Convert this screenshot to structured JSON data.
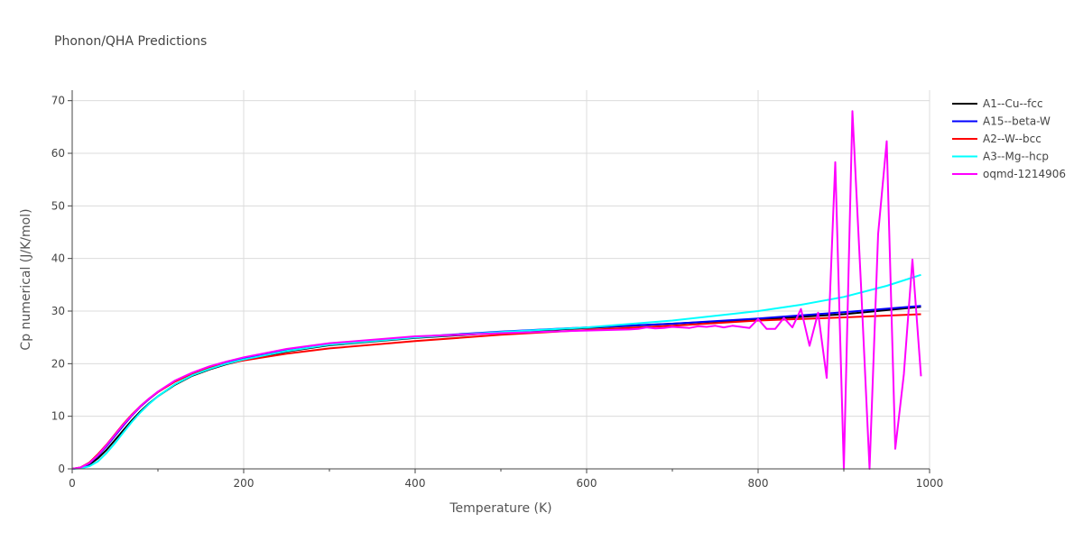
{
  "chart_data": {
    "type": "line",
    "title": "Phonon/QHA Predictions",
    "xlabel": "Temperature (K)",
    "ylabel": "Cp numerical (J/K/mol)",
    "xlim": [
      0,
      1000
    ],
    "ylim": [
      0,
      72
    ],
    "x_ticks": [
      0,
      200,
      400,
      600,
      800,
      1000
    ],
    "y_ticks": [
      0,
      10,
      20,
      30,
      40,
      50,
      60,
      70
    ],
    "grid": true,
    "legend_position": "top-right",
    "series": [
      {
        "name": "A1--Cu--fcc",
        "color": "#000000",
        "x": [
          0,
          10,
          20,
          30,
          40,
          50,
          60,
          70,
          80,
          90,
          100,
          120,
          140,
          160,
          180,
          200,
          250,
          300,
          400,
          500,
          600,
          700,
          800,
          900,
          990
        ],
        "y": [
          0,
          0.2,
          0.8,
          2.0,
          3.6,
          5.5,
          7.4,
          9.3,
          11.0,
          12.5,
          13.8,
          16.0,
          17.7,
          18.9,
          19.9,
          20.7,
          22.3,
          23.5,
          24.9,
          25.9,
          26.8,
          27.6,
          28.4,
          29.4,
          30.8
        ]
      },
      {
        "name": "A15--beta-W",
        "color": "#0000ff",
        "x": [
          0,
          10,
          20,
          30,
          40,
          50,
          60,
          70,
          80,
          90,
          100,
          120,
          140,
          160,
          180,
          200,
          250,
          300,
          400,
          500,
          600,
          700,
          800,
          900,
          990
        ],
        "y": [
          0,
          0.2,
          1.0,
          2.5,
          4.3,
          6.3,
          8.3,
          10.2,
          11.9,
          13.3,
          14.6,
          16.7,
          18.2,
          19.4,
          20.3,
          21.1,
          22.6,
          23.7,
          25.1,
          26.1,
          26.9,
          27.6,
          28.6,
          29.8,
          31.0
        ]
      },
      {
        "name": "A2--W--bcc",
        "color": "#ff0000",
        "x": [
          0,
          10,
          20,
          30,
          40,
          50,
          60,
          70,
          80,
          90,
          100,
          120,
          140,
          160,
          180,
          200,
          250,
          300,
          400,
          500,
          600,
          700,
          800,
          900,
          990
        ],
        "y": [
          0,
          0.3,
          1.2,
          2.8,
          4.6,
          6.6,
          8.6,
          10.4,
          12.0,
          13.4,
          14.6,
          16.6,
          18.1,
          19.2,
          20.0,
          20.6,
          21.9,
          22.9,
          24.3,
          25.5,
          26.4,
          27.2,
          28.2,
          28.8,
          29.4
        ]
      },
      {
        "name": "A3--Mg--hcp",
        "color": "#00ffff",
        "x": [
          0,
          10,
          20,
          30,
          40,
          50,
          60,
          70,
          80,
          90,
          100,
          120,
          140,
          160,
          180,
          200,
          250,
          300,
          400,
          500,
          600,
          700,
          800,
          850,
          900,
          950,
          990
        ],
        "y": [
          0,
          0.1,
          0.5,
          1.4,
          3.0,
          4.9,
          7.0,
          9.0,
          10.8,
          12.4,
          13.8,
          16.1,
          17.8,
          19.0,
          20.0,
          20.8,
          22.4,
          23.6,
          25.0,
          26.0,
          26.9,
          28.2,
          30.0,
          31.2,
          32.7,
          34.8,
          36.9
        ]
      },
      {
        "name": "oqmd-1214906",
        "color": "#ff00ff",
        "x": [
          0,
          10,
          20,
          30,
          40,
          50,
          60,
          70,
          80,
          90,
          100,
          120,
          140,
          160,
          180,
          200,
          250,
          300,
          400,
          500,
          600,
          650,
          660,
          670,
          680,
          690,
          700,
          710,
          720,
          730,
          740,
          750,
          760,
          770,
          780,
          790,
          800,
          810,
          820,
          830,
          840,
          850,
          860,
          870,
          880,
          890,
          900,
          910,
          920,
          930,
          940,
          950,
          960,
          970,
          980,
          990
        ],
        "y": [
          0,
          0.3,
          1.1,
          2.6,
          4.5,
          6.5,
          8.5,
          10.3,
          12.0,
          13.4,
          14.7,
          16.8,
          18.3,
          19.5,
          20.4,
          21.2,
          22.8,
          23.9,
          25.2,
          25.8,
          26.3,
          26.5,
          26.6,
          26.9,
          26.7,
          26.8,
          27.0,
          26.9,
          26.8,
          27.1,
          27.0,
          27.2,
          26.9,
          27.2,
          27.0,
          26.8,
          28.5,
          26.6,
          26.6,
          28.7,
          26.9,
          30.4,
          23.4,
          29.7,
          17.3,
          58.3,
          0,
          68.0,
          35.0,
          0,
          44.7,
          62.3,
          3.8,
          18.0,
          39.8,
          17.6
        ]
      }
    ]
  }
}
